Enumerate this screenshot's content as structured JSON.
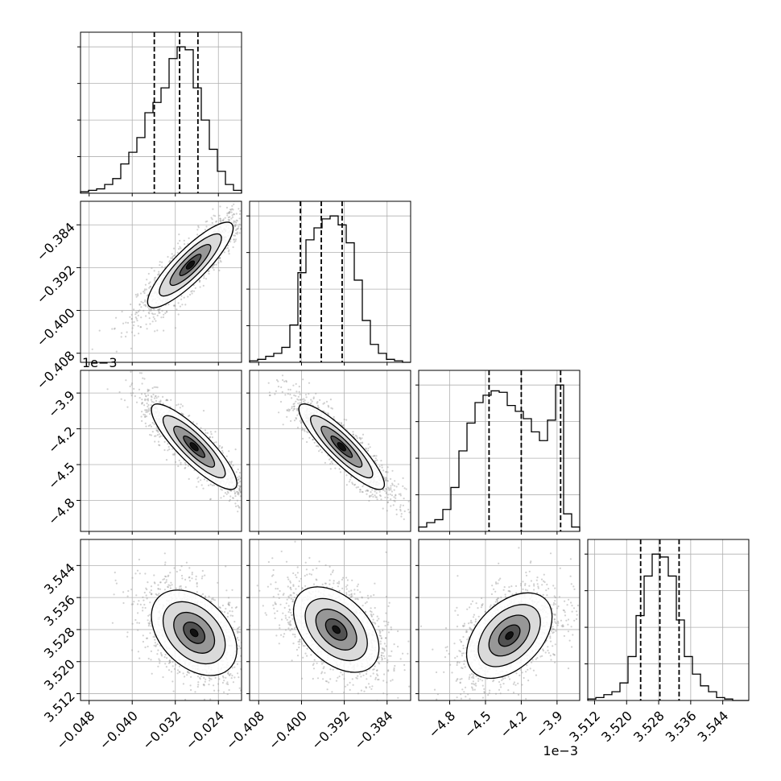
{
  "chart_data": {
    "type": "corner",
    "parameters": [
      {
        "ticks": [
          "−0.048",
          "−0.040",
          "−0.032",
          "−0.024"
        ],
        "tick_values": [
          -0.048,
          -0.04,
          -0.032,
          -0.024
        ],
        "range": [
          -0.0496,
          -0.0197
        ]
      },
      {
        "ticks": [
          "−0.408",
          "−0.400",
          "−0.392",
          "−0.384"
        ],
        "tick_values": [
          -0.408,
          -0.4,
          -0.392,
          -0.384
        ],
        "range": [
          -0.4097,
          -0.3796
        ]
      },
      {
        "ticks": [
          "−4.8",
          "−4.5",
          "−4.2",
          "−3.9"
        ],
        "tick_values": [
          -4.8,
          -4.5,
          -4.2,
          -3.9
        ],
        "range": [
          -5.06,
          -3.71
        ],
        "offset": "1e−3"
      },
      {
        "ticks": [
          "3.512",
          "3.520",
          "3.528",
          "3.536",
          "3.544"
        ],
        "tick_values": [
          3.512,
          3.52,
          3.528,
          3.536,
          3.544
        ],
        "range": [
          3.5103,
          3.5505
        ]
      }
    ],
    "histograms": [
      {
        "counts": [
          1,
          2,
          3,
          6,
          10,
          20,
          28,
          38,
          55,
          62,
          72,
          92,
          100,
          98,
          72,
          50,
          30,
          15,
          6,
          2
        ],
        "quantiles": [
          -0.0359,
          -0.0312,
          -0.0278
        ]
      },
      {
        "counts": [
          1,
          2,
          4,
          6,
          10,
          25,
          60,
          82,
          90,
          96,
          98,
          92,
          80,
          55,
          28,
          12,
          6,
          2,
          1,
          0
        ],
        "quantiles": [
          -0.4002,
          -0.3963,
          -0.3924
        ]
      },
      {
        "counts": [
          3,
          6,
          8,
          15,
          30,
          55,
          74,
          88,
          93,
          96,
          95,
          86,
          82,
          77,
          68,
          62,
          76,
          100,
          12,
          3
        ],
        "quantiles": [
          -4.47,
          -4.2,
          -3.87
        ]
      },
      {
        "counts": [
          1,
          2,
          4,
          6,
          12,
          30,
          58,
          85,
          100,
          98,
          85,
          55,
          30,
          18,
          10,
          6,
          2,
          1,
          0,
          0
        ],
        "quantiles": [
          3.5235,
          3.5283,
          3.5331
        ]
      }
    ],
    "joints": [
      {
        "row": 1,
        "col": 0,
        "center": [
          -0.0292,
          -0.3915
        ],
        "corr": 0.88
      },
      {
        "row": 2,
        "col": 0,
        "center": [
          -0.0285,
          -4.35
        ],
        "corr": -0.88
      },
      {
        "row": 2,
        "col": 1,
        "center": [
          -0.3925,
          -4.35
        ],
        "corr": -0.9
      },
      {
        "row": 3,
        "col": 0,
        "center": [
          -0.0285,
          3.5272
        ],
        "corr": -0.4
      },
      {
        "row": 3,
        "col": 1,
        "center": [
          -0.3935,
          3.528
        ],
        "corr": -0.45
      },
      {
        "row": 3,
        "col": 2,
        "center": [
          -4.3,
          3.5265
        ],
        "corr": 0.45
      }
    ]
  }
}
